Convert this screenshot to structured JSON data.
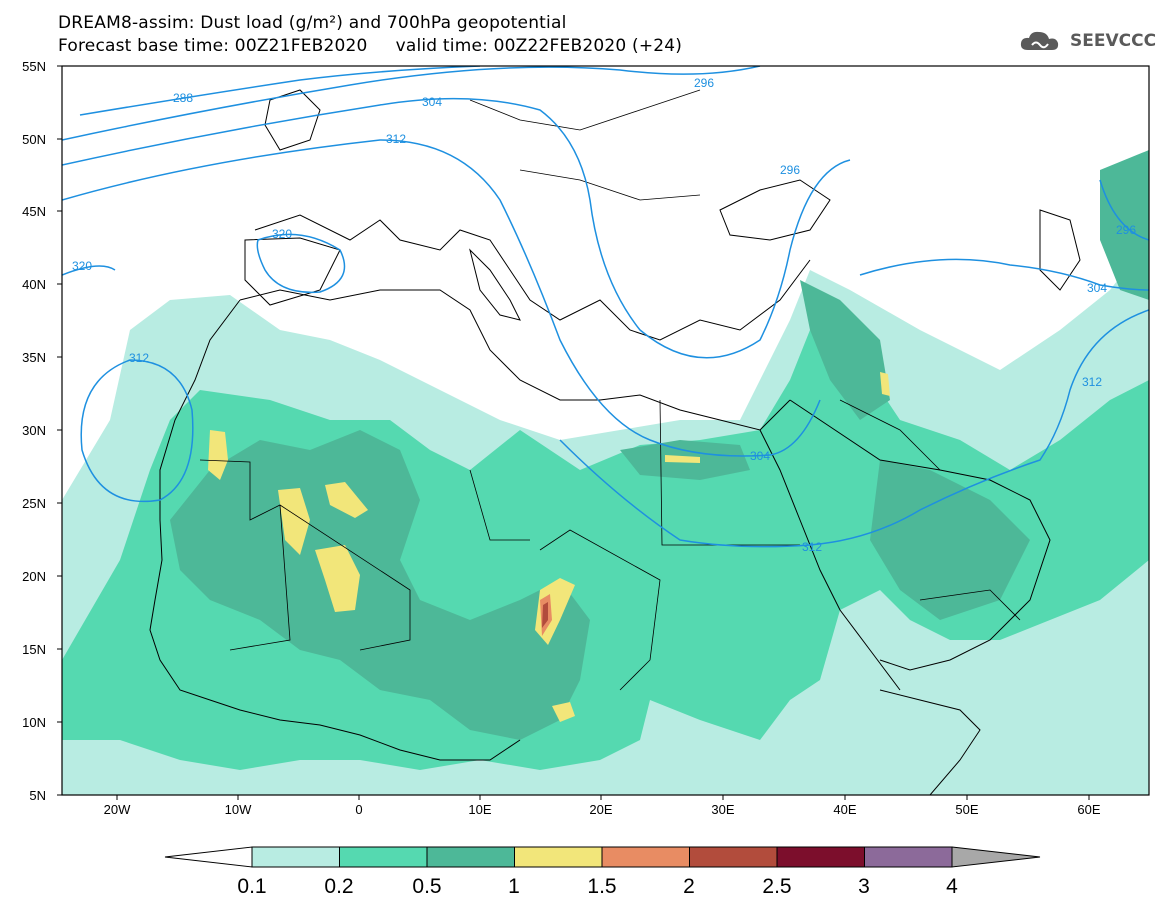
{
  "header": {
    "title_line1": "DREAM8-assim: Dust load (g/m²) and 700hPa geopotential",
    "title_line2": "Forecast base time: 00Z21FEB2020     valid time: 00Z22FEB2020 (+24)",
    "logo_text": "SEEVCCC"
  },
  "map": {
    "lat_labels": [
      "55N",
      "50N",
      "45N",
      "40N",
      "35N",
      "30N",
      "25N",
      "20N",
      "15N",
      "10N",
      "5N"
    ],
    "lon_labels": [
      "20W",
      "10W",
      "0",
      "10E",
      "20E",
      "30E",
      "40E",
      "50E",
      "60E"
    ],
    "contour_labels": [
      "288",
      "296",
      "304",
      "312",
      "320",
      "296",
      "312",
      "320",
      "304",
      "312",
      "296",
      "304",
      "312",
      "304"
    ]
  },
  "legend": {
    "tick_labels": [
      "0.1",
      "0.2",
      "0.5",
      "1",
      "1.5",
      "2",
      "2.5",
      "3",
      "4"
    ],
    "colors": [
      "#b8ece2",
      "#55d9b0",
      "#4db898",
      "#f2e67a",
      "#e88c63",
      "#b24c3c",
      "#7c0e2c",
      "#8c6a9a",
      "#a8a8a8"
    ]
  }
}
